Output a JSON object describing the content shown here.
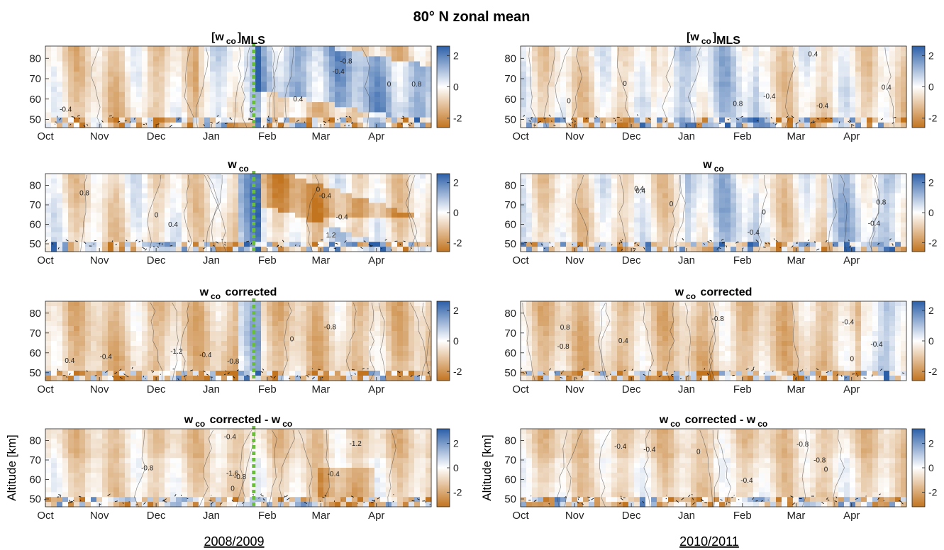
{
  "figure": {
    "title": "80° N zonal mean",
    "ylabel": "Altitude [km]",
    "season_labels": [
      "2008/2009",
      "2010/2011"
    ],
    "colors": {
      "positive": "#2b5fa8",
      "negative": "#c2741f",
      "neutral": "#ffffff",
      "marker": "#6abf3a"
    }
  },
  "panel_titles": [
    {
      "main": "[w",
      "sub": "co",
      "tail": "]",
      "subscript_tail": "MLS"
    },
    {
      "main": "w",
      "sub": "co",
      "tail": "",
      "subscript_tail": ""
    },
    {
      "main": "w",
      "sub": "co",
      "tail": " corrected",
      "subscript_tail": ""
    },
    {
      "main": "w",
      "sub": "co",
      "tail": " corrected - w",
      "sub2": "co",
      "subscript_tail": ""
    }
  ],
  "chart_data": [
    {
      "type": "heatmap",
      "panel": "2008/2009 [w_co]_MLS",
      "x_ticks": [
        "Oct",
        "Nov",
        "Dec",
        "Jan",
        "Feb",
        "Mar",
        "Apr"
      ],
      "y_ticks": [
        50,
        60,
        70,
        80
      ],
      "ylim": [
        46,
        86
      ],
      "colorbar": {
        "ticks": [
          2,
          0,
          -2
        ],
        "range": [
          -2.6,
          2.6
        ]
      },
      "contour_labels": [
        "0",
        "-0.4",
        "0.4",
        "0.8",
        "-0.8"
      ],
      "event_marker": "late Jan"
    },
    {
      "type": "heatmap",
      "panel": "2010/2011 [w_co]_MLS",
      "x_ticks": [
        "Oct",
        "Nov",
        "Dec",
        "Jan",
        "Feb",
        "Mar",
        "Apr"
      ],
      "y_ticks": [
        50,
        60,
        70,
        80
      ],
      "ylim": [
        46,
        86
      ],
      "colorbar": {
        "ticks": [
          2,
          0,
          -2
        ],
        "range": [
          -2.6,
          2.6
        ]
      },
      "contour_labels": [
        "0",
        "0.4",
        "-0.4",
        "0.8"
      ]
    },
    {
      "type": "heatmap",
      "panel": "2008/2009 w_co",
      "x_ticks": [
        "Oct",
        "Nov",
        "Dec",
        "Jan",
        "Feb",
        "Mar",
        "Apr"
      ],
      "y_ticks": [
        50,
        60,
        70,
        80
      ],
      "ylim": [
        46,
        86
      ],
      "colorbar": {
        "ticks": [
          2,
          0,
          -2
        ],
        "range": [
          -2.6,
          2.6
        ]
      },
      "contour_labels": [
        "0",
        "-0.4",
        "0.4",
        "0.8",
        "1.2"
      ],
      "event_marker": "late Jan"
    },
    {
      "type": "heatmap",
      "panel": "2010/2011 w_co",
      "x_ticks": [
        "Oct",
        "Nov",
        "Dec",
        "Jan",
        "Feb",
        "Mar",
        "Apr"
      ],
      "y_ticks": [
        50,
        60,
        70,
        80
      ],
      "ylim": [
        46,
        86
      ],
      "colorbar": {
        "ticks": [
          2,
          0,
          -2
        ],
        "range": [
          -2.6,
          2.6
        ]
      },
      "contour_labels": [
        "0",
        "0.4",
        "-0.4",
        "0.8"
      ]
    },
    {
      "type": "heatmap",
      "panel": "2008/2009 w_co corrected",
      "x_ticks": [
        "Oct",
        "Nov",
        "Dec",
        "Jan",
        "Feb",
        "Mar",
        "Apr"
      ],
      "y_ticks": [
        50,
        60,
        70,
        80
      ],
      "ylim": [
        46,
        86
      ],
      "colorbar": {
        "ticks": [
          2,
          0,
          -2
        ],
        "range": [
          -2.6,
          2.6
        ]
      },
      "contour_labels": [
        "-0.8",
        "-0.4",
        "0",
        "0.4",
        "-1.2"
      ],
      "event_marker": "late Jan"
    },
    {
      "type": "heatmap",
      "panel": "2010/2011 w_co corrected",
      "x_ticks": [
        "Oct",
        "Nov",
        "Dec",
        "Jan",
        "Feb",
        "Mar",
        "Apr"
      ],
      "y_ticks": [
        50,
        60,
        70,
        80
      ],
      "ylim": [
        46,
        86
      ],
      "colorbar": {
        "ticks": [
          2,
          0,
          -2
        ],
        "range": [
          -2.6,
          2.6
        ]
      },
      "contour_labels": [
        "-0.4",
        "-0.8",
        "0",
        "0.8",
        "0.4"
      ]
    },
    {
      "type": "heatmap",
      "panel": "2008/2009 w_co corrected - w_co",
      "x_ticks": [
        "Oct",
        "Nov",
        "Dec",
        "Jan",
        "Feb",
        "Mar",
        "Apr"
      ],
      "y_ticks": [
        50,
        60,
        70,
        80
      ],
      "ylim": [
        46,
        86
      ],
      "colorbar": {
        "ticks": [
          2,
          0,
          -2
        ],
        "range": [
          -3.2,
          3.2
        ]
      },
      "contour_labels": [
        "-0.4",
        "-0.8",
        "-1.2",
        "0",
        "-1.6"
      ],
      "event_marker": "late Jan"
    },
    {
      "type": "heatmap",
      "panel": "2010/2011 w_co corrected - w_co",
      "x_ticks": [
        "Oct",
        "Nov",
        "Dec",
        "Jan",
        "Feb",
        "Mar",
        "Apr"
      ],
      "y_ticks": [
        50,
        60,
        70,
        80
      ],
      "ylim": [
        46,
        86
      ],
      "colorbar": {
        "ticks": [
          2,
          0,
          -2
        ],
        "range": [
          -3.2,
          3.2
        ]
      },
      "contour_labels": [
        "-0.4",
        "-0.8",
        "0"
      ]
    }
  ]
}
